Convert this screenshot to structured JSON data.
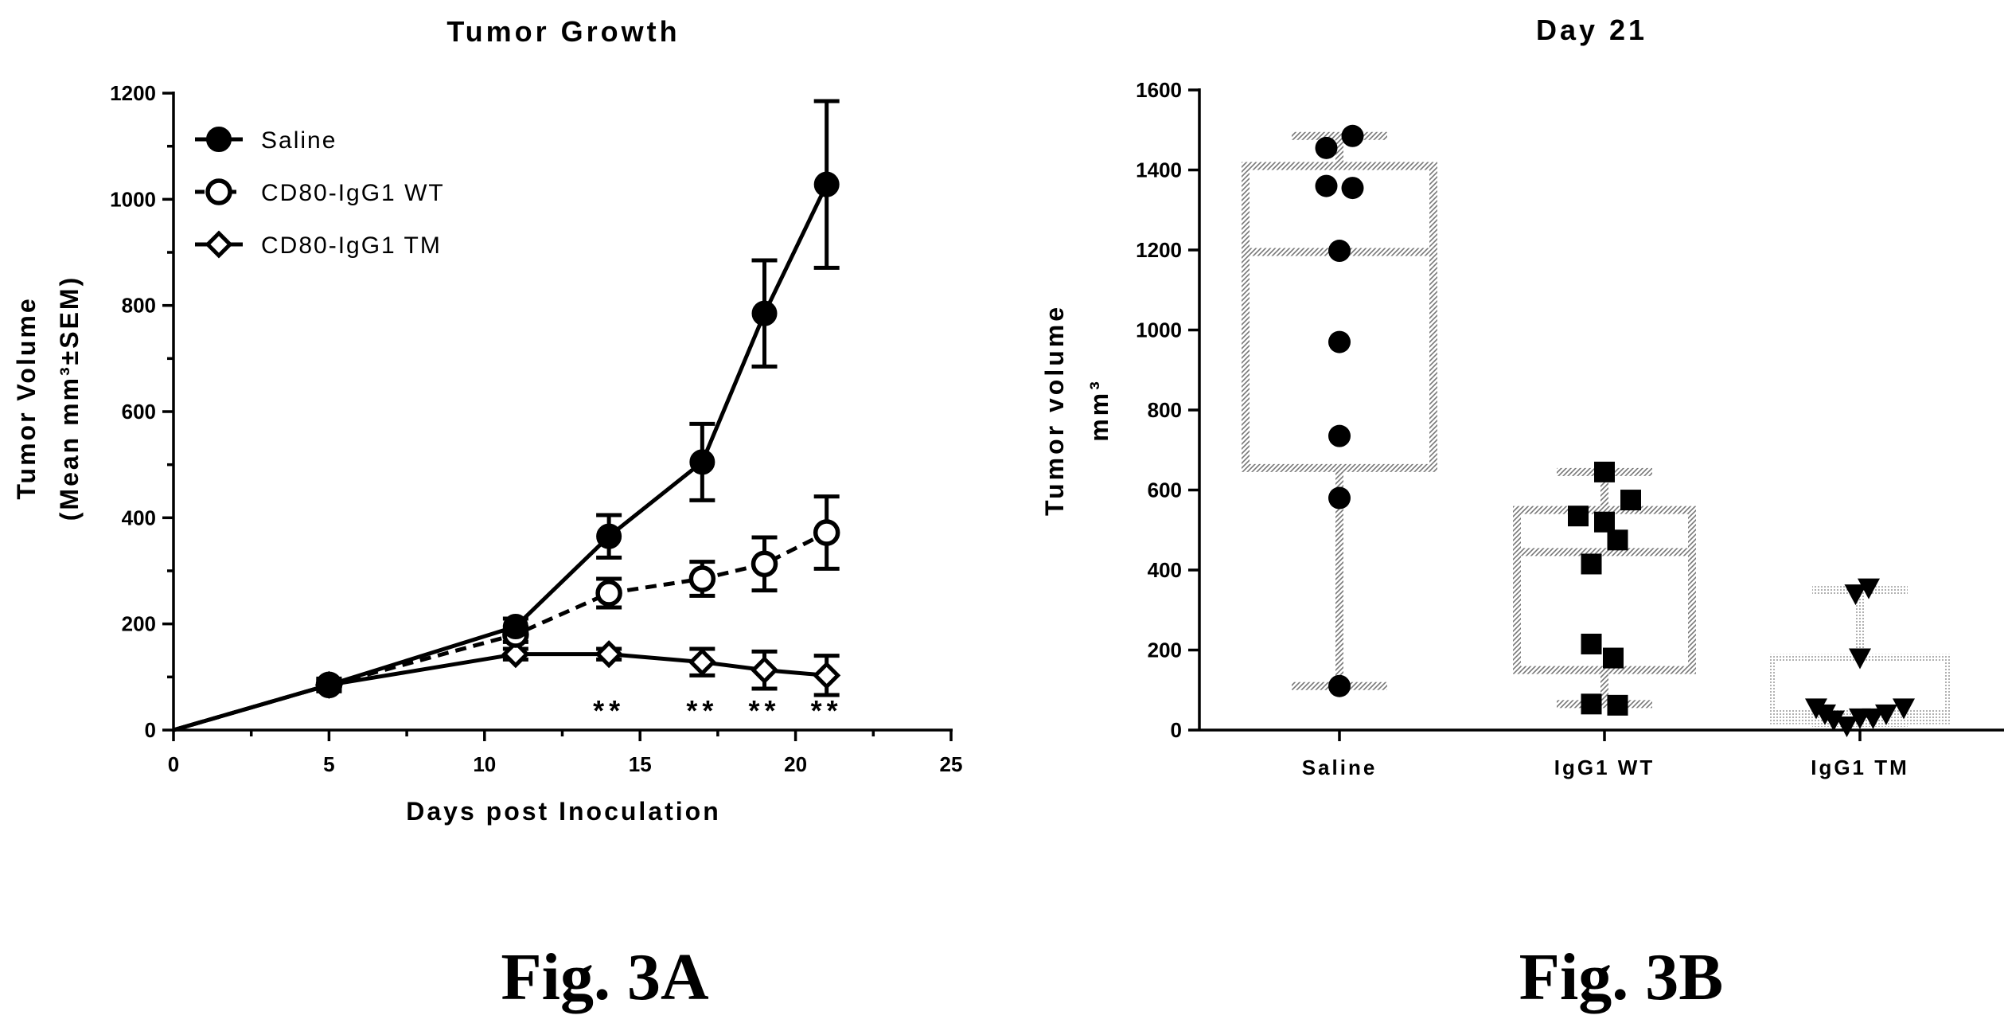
{
  "figure": {
    "captions": [
      "Fig. 3A",
      "Fig. 3B"
    ]
  },
  "chart_data": [
    {
      "type": "line",
      "title": "Tumor Growth",
      "xlabel": "Days post Inoculation",
      "ylabel": "Tumor Volume",
      "ylabel_line2": "(Mean mm³±SEM)",
      "xlim": [
        0,
        25
      ],
      "ylim": [
        0,
        1200
      ],
      "xticks": [
        0,
        5,
        10,
        15,
        20,
        25
      ],
      "yticks": [
        0,
        200,
        400,
        600,
        800,
        1000,
        1200
      ],
      "legend_position": "top-left",
      "series": [
        {
          "name": "Saline",
          "marker": "filled-circle",
          "line": "solid",
          "color": "#000000",
          "x": [
            0,
            5,
            11,
            14,
            17,
            19,
            21
          ],
          "y": [
            0,
            85,
            195,
            365,
            505,
            785,
            1028
          ],
          "err": [
            0,
            12,
            15,
            40,
            72,
            100,
            157
          ]
        },
        {
          "name": "CD80-IgG1 WT",
          "marker": "open-circle",
          "line": "dashed",
          "color": "#000000",
          "x": [
            0,
            5,
            11,
            14,
            17,
            19,
            21
          ],
          "y": [
            0,
            85,
            180,
            258,
            285,
            313,
            372
          ],
          "err": [
            0,
            10,
            14,
            27,
            32,
            50,
            68
          ]
        },
        {
          "name": "CD80-IgG1 TM",
          "marker": "open-diamond",
          "line": "solid",
          "color": "#000000",
          "x": [
            0,
            5,
            11,
            14,
            17,
            19,
            21
          ],
          "y": [
            0,
            85,
            143,
            143,
            128,
            113,
            103
          ],
          "err": [
            0,
            8,
            10,
            10,
            25,
            35,
            37
          ]
        }
      ],
      "annotations": [
        {
          "text": "**",
          "x": 14
        },
        {
          "text": "**",
          "x": 17
        },
        {
          "text": "**",
          "x": 19
        },
        {
          "text": "**",
          "x": 21
        }
      ]
    },
    {
      "type": "box",
      "title": "Day 21",
      "ylabel": "Tumor volume",
      "ylabel_line2": "mm³",
      "ylim": [
        0,
        1600
      ],
      "yticks": [
        0,
        200,
        400,
        600,
        800,
        1000,
        1200,
        1400,
        1600
      ],
      "categories": [
        "Saline",
        "IgG1 WT",
        "IgG1 TM"
      ],
      "boxes": [
        {
          "min": 110,
          "q1": 655,
          "median": 1195,
          "q3": 1410,
          "max": 1485
        },
        {
          "min": 65,
          "q1": 150,
          "median": 445,
          "q3": 550,
          "max": 645
        },
        {
          "min": 18,
          "q1": 25,
          "median": 40,
          "q3": 180,
          "max": 350
        }
      ],
      "points": [
        {
          "marker": "circle",
          "values": [
            1485,
            1455,
            1360,
            1355,
            1198,
            970,
            735,
            580,
            110
          ],
          "offsets": [
            0.3,
            -0.3,
            -0.3,
            0.3,
            0,
            0,
            0,
            0,
            0
          ]
        },
        {
          "marker": "square",
          "values": [
            645,
            575,
            535,
            520,
            475,
            415,
            215,
            180,
            65,
            62
          ],
          "offsets": [
            0,
            0.6,
            -0.6,
            0,
            0.3,
            -0.3,
            -0.3,
            0.2,
            -0.3,
            0.3
          ]
        },
        {
          "marker": "triangle-down",
          "values": [
            355,
            340,
            180,
            55,
            40,
            25,
            10,
            30,
            30,
            40,
            55
          ],
          "offsets": [
            0.2,
            -0.1,
            0,
            -1,
            -0.8,
            -0.6,
            -0.3,
            0,
            0.3,
            0.6,
            1
          ]
        }
      ]
    }
  ]
}
